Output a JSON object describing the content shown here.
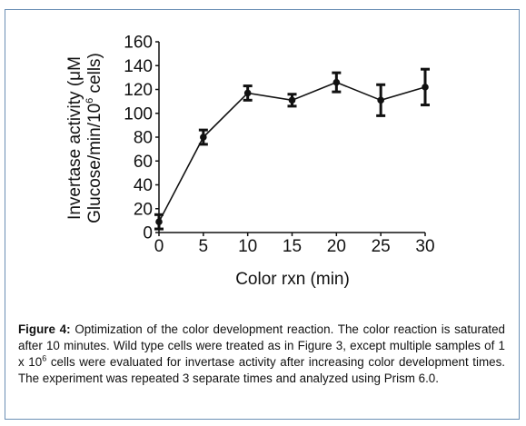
{
  "chart_data": {
    "type": "line",
    "x": [
      0,
      5,
      10,
      15,
      20,
      25,
      30
    ],
    "y": [
      9,
      80,
      117,
      111,
      126,
      111,
      122
    ],
    "error": [
      6,
      6,
      6,
      5,
      8,
      13,
      15
    ],
    "xlabel": "Color rxn (min)",
    "ylabel_line1": "Invertase activity (μM",
    "ylabel_line2_prefix": "Glucose/min/10",
    "ylabel_line2_sup": "6",
    "ylabel_line2_suffix": " cells)",
    "xticks": [
      "0",
      "5",
      "10",
      "15",
      "20",
      "25",
      "30"
    ],
    "yticks": [
      "0",
      "20",
      "40",
      "60",
      "80",
      "100",
      "120",
      "140",
      "160"
    ],
    "xlim": [
      0,
      30
    ],
    "ylim": [
      0,
      160
    ],
    "grid": false,
    "line_color": "#111111"
  },
  "caption": {
    "label": "Figure 4:",
    "text_before_sup": " Optimization of the color development reaction. The color reaction is saturated after 10 minutes. Wild type cells were treated as in Figure 3, except multiple samples of 1 x 10",
    "sup": "6",
    "text_after_sup": " cells were evaluated for invertase activity after increasing color development times. The experiment was repeated 3 separate times and analyzed using Prism 6.0."
  }
}
